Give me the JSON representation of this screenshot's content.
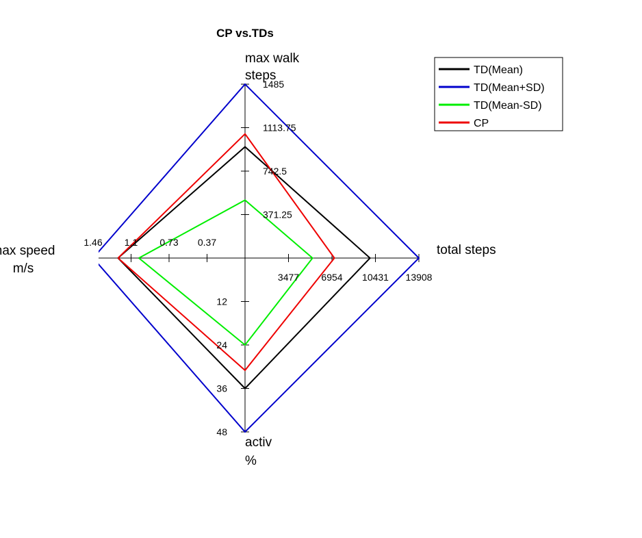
{
  "chart_data": {
    "type": "radar",
    "title": "CP vs.TDs",
    "axes": [
      {
        "key": "max_walk_steps",
        "label_lines": [
          "max walk",
          "steps"
        ],
        "max": 1485,
        "ticks": [
          "371.25",
          "742.5",
          "1113.75",
          "1485"
        ]
      },
      {
        "key": "total_steps",
        "label_lines": [
          "total steps"
        ],
        "max": 13908,
        "ticks": [
          "3477",
          "6954",
          "10431",
          "13908"
        ]
      },
      {
        "key": "activ",
        "label_lines": [
          "activ",
          "%"
        ],
        "max": 48,
        "ticks": [
          "12",
          "24",
          "36",
          "48"
        ]
      },
      {
        "key": "max_speed",
        "label_lines": [
          "max speed",
          "m/s"
        ],
        "max": 1.46,
        "ticks": [
          "0.37",
          "0.73",
          "1.1",
          "1.46"
        ]
      }
    ],
    "series": [
      {
        "name": "TD(Mean)",
        "color": "#000000",
        "values": [
          950,
          10000,
          36,
          1.22
        ]
      },
      {
        "name": "TD(Mean+SD)",
        "color": "#0000cc",
        "values": [
          1485,
          13908,
          48,
          1.46
        ]
      },
      {
        "name": "TD(Mean-SD)",
        "color": "#00ee00",
        "values": [
          495,
          5400,
          24,
          1.02
        ]
      },
      {
        "name": "CP",
        "color": "#ee0000",
        "values": [
          1060,
          7150,
          31,
          1.22
        ]
      }
    ]
  }
}
